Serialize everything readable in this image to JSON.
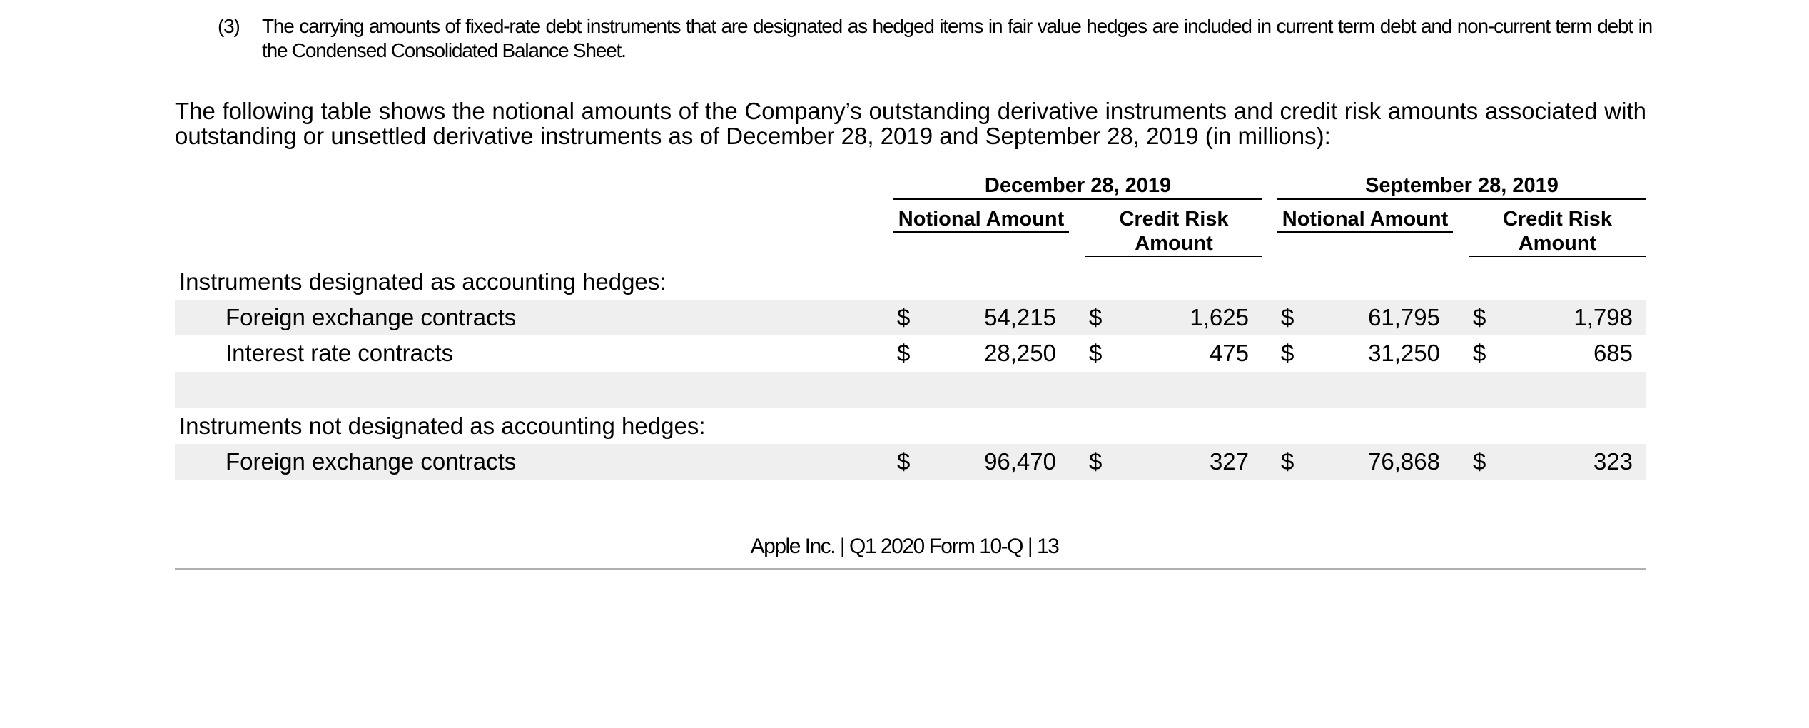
{
  "footnote": {
    "marker": "(3)",
    "text": "The carrying amounts of fixed-rate debt instruments that are designated as hedged items in fair value hedges are included in current term debt and non-current term debt in the Condensed Consolidated Balance Sheet."
  },
  "intro": "The following table shows the notional amounts of the Company’s outstanding derivative instruments and credit risk amounts associated with outstanding or unsettled derivative instruments as of December 28, 2019 and September 28, 2019 (in millions):",
  "table": {
    "periods": [
      "December 28, 2019",
      "September 28, 2019"
    ],
    "column_headers": [
      "Notional Amount",
      "Credit Risk Amount",
      "Notional Amount",
      "Credit Risk Amount"
    ],
    "currency_symbol": "$",
    "sections": [
      {
        "heading": "Instruments designated as accounting hedges:",
        "rows": [
          {
            "label": "Foreign exchange contracts",
            "values": [
              "54,215",
              "1,625",
              "61,795",
              "1,798"
            ]
          },
          {
            "label": "Interest rate contracts",
            "values": [
              "28,250",
              "475",
              "31,250",
              "685"
            ]
          }
        ]
      },
      {
        "heading": "Instruments not designated as accounting hedges:",
        "rows": [
          {
            "label": "Foreign exchange contracts",
            "values": [
              "96,470",
              "327",
              "76,868",
              "323"
            ]
          }
        ]
      }
    ]
  },
  "footer": "Apple Inc. | Q1 2020 Form 10-Q | 13"
}
